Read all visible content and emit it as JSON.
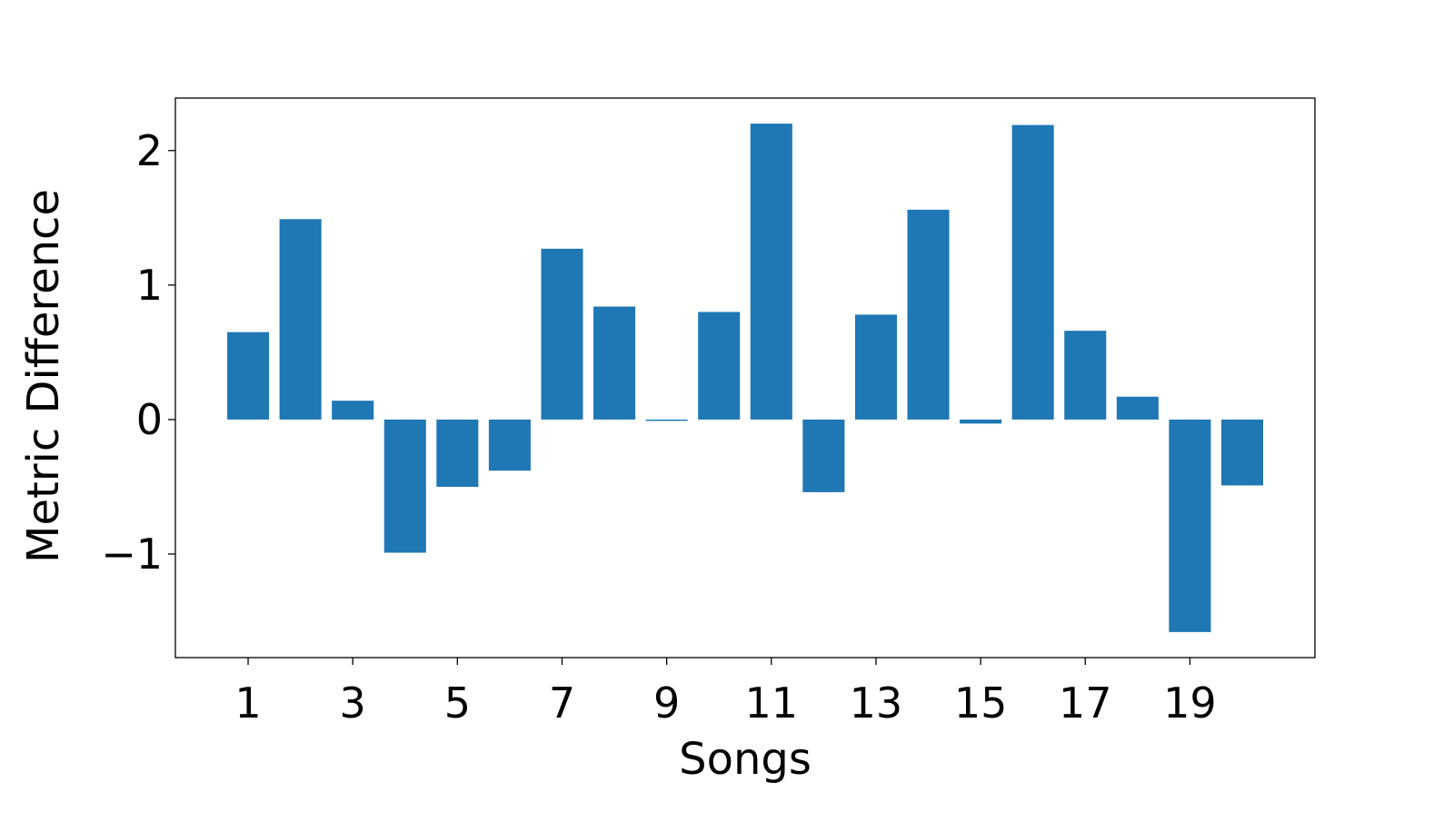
{
  "chart_data": {
    "type": "bar",
    "title": "",
    "xlabel": "Songs",
    "ylabel": "Metric Difference",
    "categories": [
      1,
      2,
      3,
      4,
      5,
      6,
      7,
      8,
      9,
      10,
      11,
      12,
      13,
      14,
      15,
      16,
      17,
      18,
      19,
      20
    ],
    "values": [
      0.65,
      1.49,
      0.14,
      -0.99,
      -0.5,
      -0.38,
      1.27,
      0.84,
      -0.01,
      0.8,
      2.2,
      -0.54,
      0.78,
      1.56,
      -0.03,
      2.19,
      0.66,
      0.17,
      -1.58,
      -0.49
    ],
    "xticks": [
      "1",
      "3",
      "5",
      "7",
      "9",
      "11",
      "13",
      "15",
      "17",
      "19"
    ],
    "xtick_values": [
      1,
      3,
      5,
      7,
      9,
      11,
      13,
      15,
      17,
      19
    ],
    "yticks": [
      "−1",
      "0",
      "1",
      "2"
    ],
    "ytick_values": [
      -1,
      0,
      1,
      2
    ],
    "xlim": [
      -0.39,
      21.39
    ],
    "ylim": [
      -1.77,
      2.39
    ],
    "bar_color": "#1f77b4",
    "grid": false,
    "legend": "none"
  }
}
